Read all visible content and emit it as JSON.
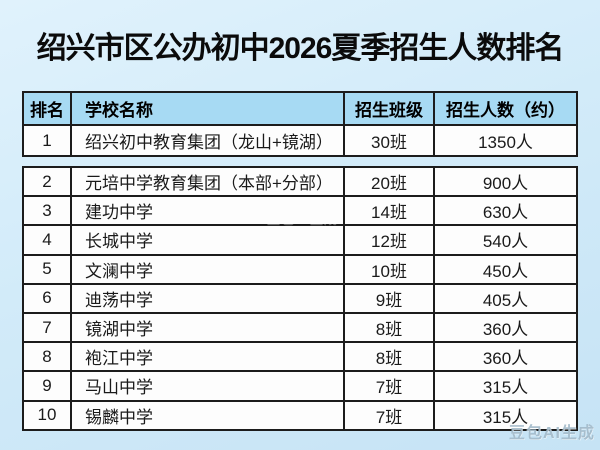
{
  "title": "绍兴市区公办初中2026夏季招生人数排名",
  "table": {
    "columns": [
      "排名",
      "学校名称",
      "招生班级",
      "招生人数（约）"
    ],
    "rows": [
      {
        "rank": "1",
        "school": "绍兴初中教育集团（龙山+镜湖）",
        "classes": "30班",
        "students": "1350人"
      },
      {
        "rank": "2",
        "school": "元培中学教育集团（本部+分部）",
        "classes": "20班",
        "students": "900人"
      },
      {
        "rank": "3",
        "school": "建功中学",
        "classes": "14班",
        "students": "630人"
      },
      {
        "rank": "4",
        "school": "长城中学",
        "classes": "12班",
        "students": "540人"
      },
      {
        "rank": "5",
        "school": "文澜中学",
        "classes": "10班",
        "students": "450人"
      },
      {
        "rank": "6",
        "school": "迪荡中学",
        "classes": "9班",
        "students": "405人"
      },
      {
        "rank": "7",
        "school": "镜湖中学",
        "classes": "8班",
        "students": "360人"
      },
      {
        "rank": "8",
        "school": "袍江中学",
        "classes": "8班",
        "students": "360人"
      },
      {
        "rank": "9",
        "school": "马山中学",
        "classes": "7班",
        "students": "315人"
      },
      {
        "rank": "10",
        "school": "锡麟中学",
        "classes": "7班",
        "students": "315人"
      }
    ]
  },
  "watermarks": {
    "center": "豆包AI生成",
    "bottom_right": "豆包AI生成"
  },
  "colors": {
    "page_bg_top": "#e0f2fc",
    "page_bg_bottom": "#c6e3f5",
    "header_bg": "#a7daf3",
    "row_bg": "#fdfdfd",
    "border": "#1c1c1c",
    "title_text": "#0b0b0b",
    "cell_text": "#1a1a1a"
  },
  "chart_data": {
    "type": "table",
    "title": "绍兴市区公办初中2026夏季招生人数排名",
    "columns": [
      "排名",
      "学校名称",
      "招生班级",
      "招生人数（约）"
    ],
    "rows": [
      [
        "1",
        "绍兴初中教育集团（龙山+镜湖）",
        "30班",
        "1350人"
      ],
      [
        "2",
        "元培中学教育集团（本部+分部）",
        "20班",
        "900人"
      ],
      [
        "3",
        "建功中学",
        "14班",
        "630人"
      ],
      [
        "4",
        "长城中学",
        "12班",
        "540人"
      ],
      [
        "5",
        "文澜中学",
        "10班",
        "450人"
      ],
      [
        "6",
        "迪荡中学",
        "9班",
        "405人"
      ],
      [
        "7",
        "镜湖中学",
        "8班",
        "360人"
      ],
      [
        "8",
        "袍江中学",
        "8班",
        "360人"
      ],
      [
        "9",
        "马山中学",
        "7班",
        "315人"
      ],
      [
        "10",
        "锡麟中学",
        "7班",
        "315人"
      ]
    ],
    "classes_values": [
      30,
      20,
      14,
      12,
      10,
      9,
      8,
      8,
      7,
      7
    ],
    "students_values": [
      1350,
      900,
      630,
      540,
      450,
      405,
      360,
      360,
      315,
      315
    ],
    "legend_position": "none",
    "grid": true
  }
}
